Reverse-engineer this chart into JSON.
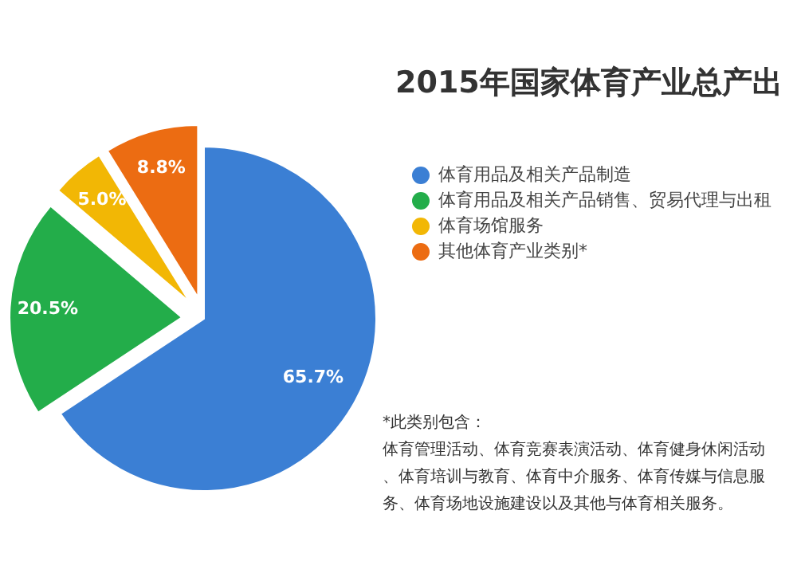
{
  "chart_data": {
    "type": "pie",
    "title": "2015年国家体育产业总产出",
    "categories": [
      "体育用品及相关产品制造",
      "体育用品及相关产品销售、贸易代理与出租",
      "体育场馆服务",
      "其他体育产业类别*"
    ],
    "values": [
      65.7,
      20.5,
      5.0,
      8.8
    ],
    "colors": [
      "#3b7fd4",
      "#23ad4a",
      "#f2b705",
      "#ec6c12"
    ],
    "value_labels": [
      "65.7%",
      "20.5%",
      "5.0%",
      "8.8%"
    ],
    "legend": "right",
    "annotations": [
      "*此类别包含：",
      "体育管理活动、体育竞赛表演活动、体育健身休闲活动、体育培训与教育、体育中介服务、体育传媒与信息服务、体育场地设施建设以及其他与体育相关服务。"
    ]
  }
}
